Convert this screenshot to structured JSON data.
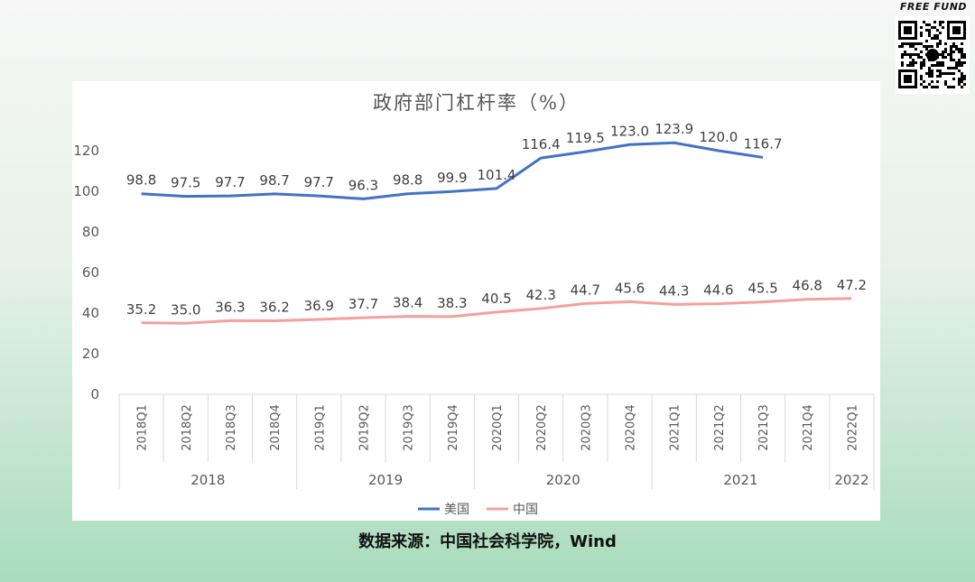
{
  "brand": {
    "text": "FREE FUND"
  },
  "source_note": "数据来源：中国社会科学院，Wind",
  "chart_data": {
    "type": "line",
    "title": "政府部门杠杆率（%）",
    "categories": [
      "2018Q1",
      "2018Q2",
      "2018Q3",
      "2018Q4",
      "2019Q1",
      "2019Q2",
      "2019Q3",
      "2019Q4",
      "2020Q1",
      "2020Q2",
      "2020Q3",
      "2020Q4",
      "2021Q1",
      "2021Q2",
      "2021Q3",
      "2021Q4",
      "2022Q1"
    ],
    "year_groups": [
      {
        "label": "2018",
        "count": 4
      },
      {
        "label": "2019",
        "count": 4
      },
      {
        "label": "2020",
        "count": 4
      },
      {
        "label": "2021",
        "count": 4
      },
      {
        "label": "2022",
        "count": 1
      }
    ],
    "ylim": [
      0,
      120
    ],
    "yticks": [
      0,
      20,
      40,
      60,
      80,
      100,
      120
    ],
    "grid": false,
    "legend_position": "bottom",
    "series": [
      {
        "name": "美国",
        "color": "#4472c4",
        "values": [
          98.8,
          97.5,
          97.7,
          98.7,
          97.7,
          96.3,
          98.8,
          99.9,
          101.4,
          116.4,
          119.5,
          123.0,
          123.9,
          120.0,
          116.7,
          null,
          null
        ]
      },
      {
        "name": "中国",
        "color": "#f4a09c",
        "values": [
          35.2,
          35.0,
          36.3,
          36.2,
          36.9,
          37.7,
          38.4,
          38.3,
          40.5,
          42.3,
          44.7,
          45.6,
          44.3,
          44.6,
          45.5,
          46.8,
          47.2
        ]
      }
    ]
  }
}
